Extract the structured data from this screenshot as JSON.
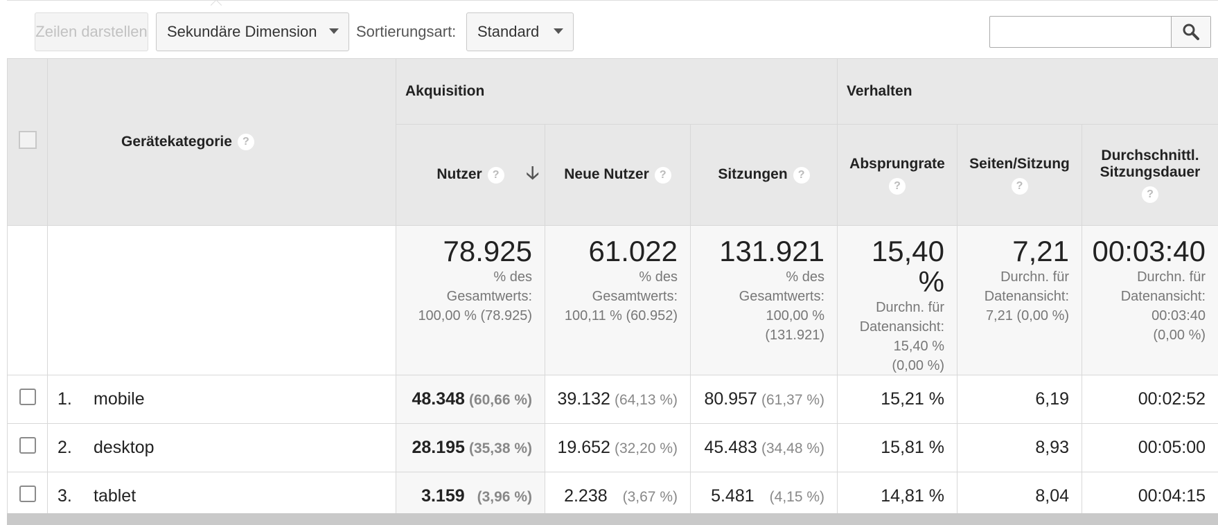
{
  "toolbar": {
    "show_rows": "Zeilen darstellen",
    "secondary_dimension": "Sekundäre Dimension",
    "sort_label": "Sortierungsart:",
    "sort_value": "Standard",
    "search_value": ""
  },
  "table": {
    "dimension_header": "Gerätekategorie",
    "groups": {
      "acquisition": "Akquisition",
      "behavior": "Verhalten"
    },
    "columns": {
      "users": "Nutzer",
      "new_users": "Neue Nutzer",
      "sessions": "Sitzungen",
      "bounce_rate": "Absprungrate",
      "pages_per_session": "Seiten/Sitzung",
      "avg_duration_line1": "Durchschnittl.",
      "avg_duration_line2": "Sitzungsdauer"
    },
    "help_glyph": "?",
    "totals": {
      "users": {
        "value": "78.925",
        "l1": "% des",
        "l2": "Gesamtwerts:",
        "l3": "100,00 % (78.925)"
      },
      "new_users": {
        "value": "61.022",
        "l1": "% des",
        "l2": "Gesamtwerts:",
        "l3": "100,11 % (60.952)"
      },
      "sessions": {
        "value": "131.921",
        "l1": "% des",
        "l2": "Gesamtwerts:",
        "l3": "100,00 %",
        "l4": "(131.921)"
      },
      "bounce_rate": {
        "value": "15,40 %",
        "l1": "Durchn. für",
        "l2": "Datenansicht:",
        "l3": "15,40 %",
        "l4": "(0,00 %)"
      },
      "pages_per_session": {
        "value": "7,21",
        "l1": "Durchn. für",
        "l2": "Datenansicht:",
        "l3": "7,21 (0,00 %)"
      },
      "avg_duration": {
        "value": "00:03:40",
        "l1": "Durchn. für",
        "l2": "Datenansicht:",
        "l3": "00:03:40",
        "l4": "(0,00 %)"
      }
    },
    "rows": [
      {
        "index": "1.",
        "device": "mobile",
        "users": "48.348",
        "users_pct": "(60,66 %)",
        "new_users": "39.132",
        "new_users_pct": "(64,13 %)",
        "sessions": "80.957",
        "sessions_pct": "(61,37 %)",
        "bounce_rate": "15,21 %",
        "pages_per_session": "6,19",
        "avg_duration": "00:02:52"
      },
      {
        "index": "2.",
        "device": "desktop",
        "users": "28.195",
        "users_pct": "(35,38 %)",
        "new_users": "19.652",
        "new_users_pct": "(32,20 %)",
        "sessions": "45.483",
        "sessions_pct": "(34,48 %)",
        "bounce_rate": "15,81 %",
        "pages_per_session": "8,93",
        "avg_duration": "00:05:00"
      },
      {
        "index": "3.",
        "device": "tablet",
        "users": "3.159",
        "users_pct": "(3,96 %)",
        "new_users": "2.238",
        "new_users_pct": "(3,67 %)",
        "sessions": "5.481",
        "sessions_pct": "(4,15 %)",
        "bounce_rate": "14,81 %",
        "pages_per_session": "8,04",
        "avg_duration": "00:04:15"
      }
    ]
  }
}
